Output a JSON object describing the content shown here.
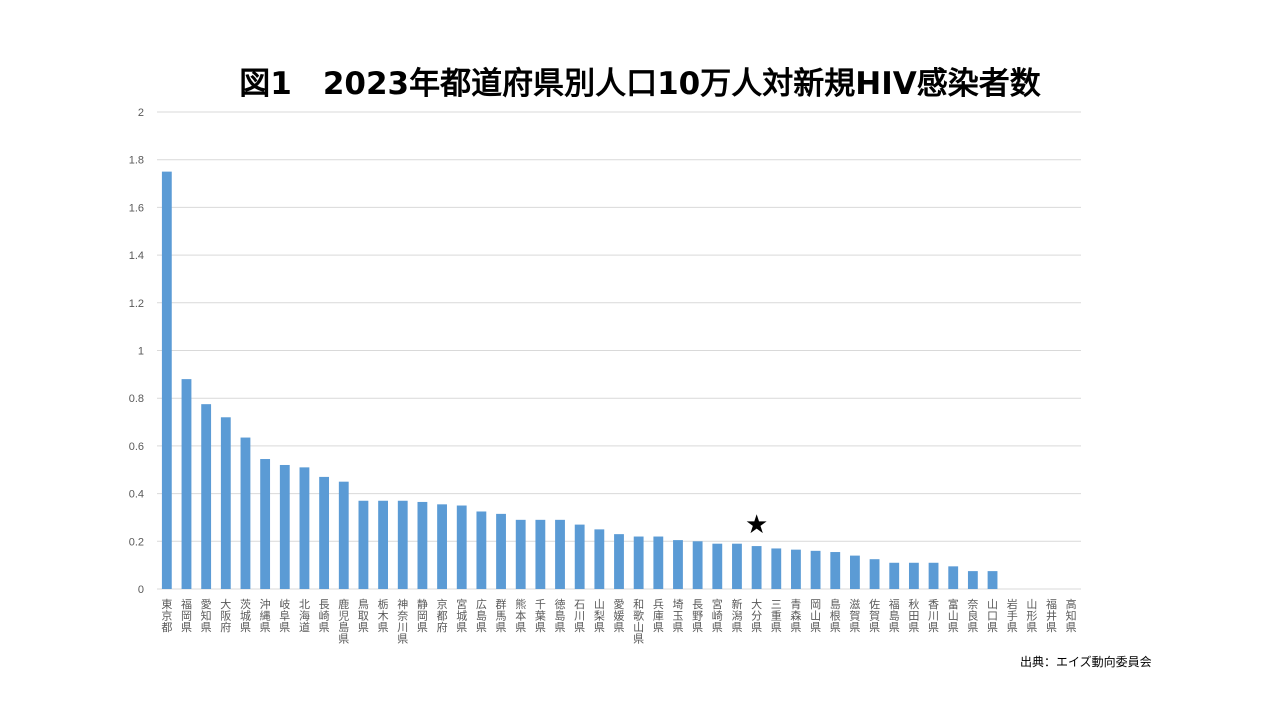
{
  "chart_data": {
    "type": "bar",
    "title": "図1　2023年都道府県別人口10万人対新規HIV感染者数",
    "xlabel": "",
    "ylabel": "",
    "ylim": [
      0,
      2
    ],
    "yticks": [
      "0",
      "0.2",
      "0.4",
      "0.6",
      "0.8",
      "1",
      "1.2",
      "1.4",
      "1.6",
      "1.8",
      "2"
    ],
    "grid": true,
    "bar_color": "#5b9bd5",
    "categories": [
      "東京都",
      "福岡県",
      "愛知県",
      "大阪府",
      "茨城県",
      "沖縄県",
      "岐阜県",
      "北海道",
      "長崎県",
      "鹿児島県",
      "鳥取県",
      "栃木県",
      "神奈川県",
      "静岡県",
      "京都府",
      "宮城県",
      "広島県",
      "群馬県",
      "熊本県",
      "千葉県",
      "徳島県",
      "石川県",
      "山梨県",
      "愛媛県",
      "和歌山県",
      "兵庫県",
      "埼玉県",
      "長野県",
      "宮崎県",
      "新潟県",
      "大分県",
      "三重県",
      "青森県",
      "岡山県",
      "島根県",
      "滋賀県",
      "佐賀県",
      "福島県",
      "秋田県",
      "香川県",
      "富山県",
      "奈良県",
      "山口県",
      "岩手県",
      "山形県",
      "福井県",
      "高知県"
    ],
    "values": [
      1.75,
      0.88,
      0.775,
      0.72,
      0.635,
      0.545,
      0.52,
      0.51,
      0.47,
      0.45,
      0.37,
      0.37,
      0.37,
      0.365,
      0.355,
      0.35,
      0.325,
      0.315,
      0.29,
      0.29,
      0.29,
      0.27,
      0.25,
      0.23,
      0.22,
      0.22,
      0.205,
      0.2,
      0.19,
      0.19,
      0.18,
      0.17,
      0.165,
      0.16,
      0.155,
      0.14,
      0.125,
      0.11,
      0.11,
      0.11,
      0.095,
      0.075,
      0.075,
      0,
      0,
      0,
      0
    ],
    "annotations": [
      {
        "text": "★",
        "category": "大分県"
      }
    ],
    "source": "出典：エイズ動向委員会"
  }
}
